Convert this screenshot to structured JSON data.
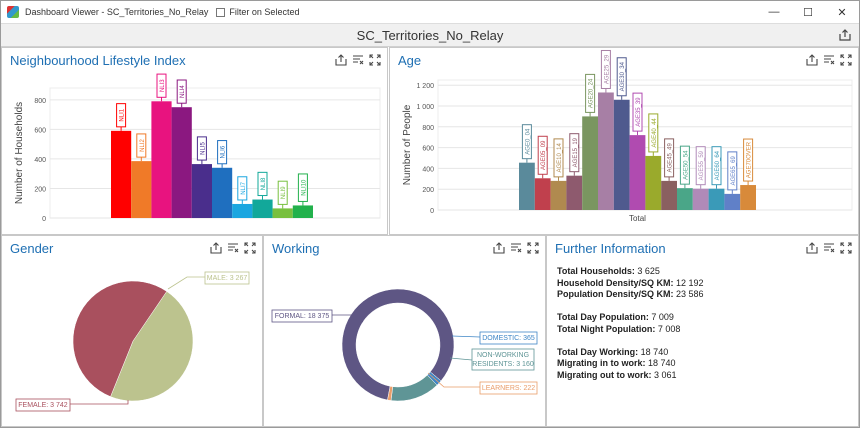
{
  "window": {
    "title": "Dashboard Viewer - SC_Territories_No_Relay",
    "filter_label": "Filter on Selected",
    "minimize": "—",
    "maximize": "☐",
    "close": "✕"
  },
  "dashboard": {
    "title": "SC_Territories_No_Relay"
  },
  "panels": {
    "lifestyle": {
      "title": "Neighbourhood Lifestyle Index"
    },
    "age": {
      "title": "Age"
    },
    "gender": {
      "title": "Gender"
    },
    "working": {
      "title": "Working"
    },
    "further": {
      "title": "Further Information"
    }
  },
  "chart_data": [
    {
      "type": "bar",
      "title": "Neighbourhood Lifestyle Index",
      "ylabel": "Number of Households",
      "ylim": [
        0,
        880
      ],
      "yticks": [
        "0",
        "200",
        "400",
        "600",
        "800"
      ],
      "categories": [
        "NLI1",
        "NLI2",
        "NLI3",
        "NLI4",
        "NLI5",
        "NLI6",
        "NLI7",
        "NLI8",
        "NLI9",
        "NLI10"
      ],
      "values": [
        590,
        385,
        790,
        750,
        365,
        340,
        95,
        125,
        65,
        85
      ],
      "colors": [
        "#ff0000",
        "#f07a28",
        "#e8137f",
        "#8b1880",
        "#4a2e8c",
        "#1f6fbf",
        "#1ba6e0",
        "#12a89a",
        "#78c03f",
        "#22b14c"
      ]
    },
    {
      "type": "bar",
      "title": "Age",
      "ylabel": "Number of People",
      "xlabel": "Total",
      "ylim": [
        0,
        1250
      ],
      "yticks": [
        "0",
        "200",
        "400",
        "600",
        "800",
        "1 000",
        "1 200"
      ],
      "categories": [
        "AGE0_04",
        "AGE05_09",
        "AGE10_14",
        "AGE15_19",
        "AGE20_24",
        "AGE25_29",
        "AGE30_34",
        "AGE35_39",
        "AGE40_44",
        "AGE45_49",
        "AGE50_54",
        "AGE55_59",
        "AGE60_64",
        "AGE65_69",
        "AGE70OVER"
      ],
      "values": [
        455,
        305,
        280,
        330,
        900,
        1130,
        1060,
        720,
        520,
        280,
        210,
        205,
        205,
        155,
        240
      ],
      "colors": [
        "#5a8a9b",
        "#c0404d",
        "#b08a4f",
        "#8e5a6e",
        "#7a9660",
        "#a77fa5",
        "#4f5a8e",
        "#b04bb0",
        "#9aaa2c",
        "#8a6060",
        "#4aa688",
        "#b08ab8",
        "#3a9ab8",
        "#6080c8",
        "#d88a3a"
      ]
    },
    {
      "type": "pie",
      "title": "Gender",
      "labels": [
        "MALE: 3 267",
        "FEMALE: 3 742"
      ],
      "values": [
        3267,
        3742
      ],
      "colors": [
        "#bcc38e",
        "#a9505e"
      ]
    },
    {
      "type": "pie",
      "title": "Working",
      "labels": [
        "FORMAL: 18 375",
        "DOMESTIC: 365",
        "NON-WORKING RESIDENTS: 3 160",
        "LEARNERS: 222"
      ],
      "values": [
        18375,
        365,
        3160,
        222
      ],
      "colors": [
        "#5e5684",
        "#3f86c6",
        "#5f9596",
        "#e99d6a"
      ]
    }
  ],
  "further_info": [
    {
      "label": "Total Households:",
      "value": "3 625"
    },
    {
      "label": "Household Density/SQ KM:",
      "value": "12 192"
    },
    {
      "label": "Population Density/SQ KM:",
      "value": "23 586"
    },
    {
      "gap": true
    },
    {
      "label": "Total Day Population:",
      "value": "7 009"
    },
    {
      "label": "Total Night Population:",
      "value": "7 008"
    },
    {
      "gap": true
    },
    {
      "label": "Total Day Working:",
      "value": "18 740"
    },
    {
      "label": "Migrating in to work:",
      "value": "18 740"
    },
    {
      "label": "Migrating out to work:",
      "value": "3 061"
    }
  ]
}
